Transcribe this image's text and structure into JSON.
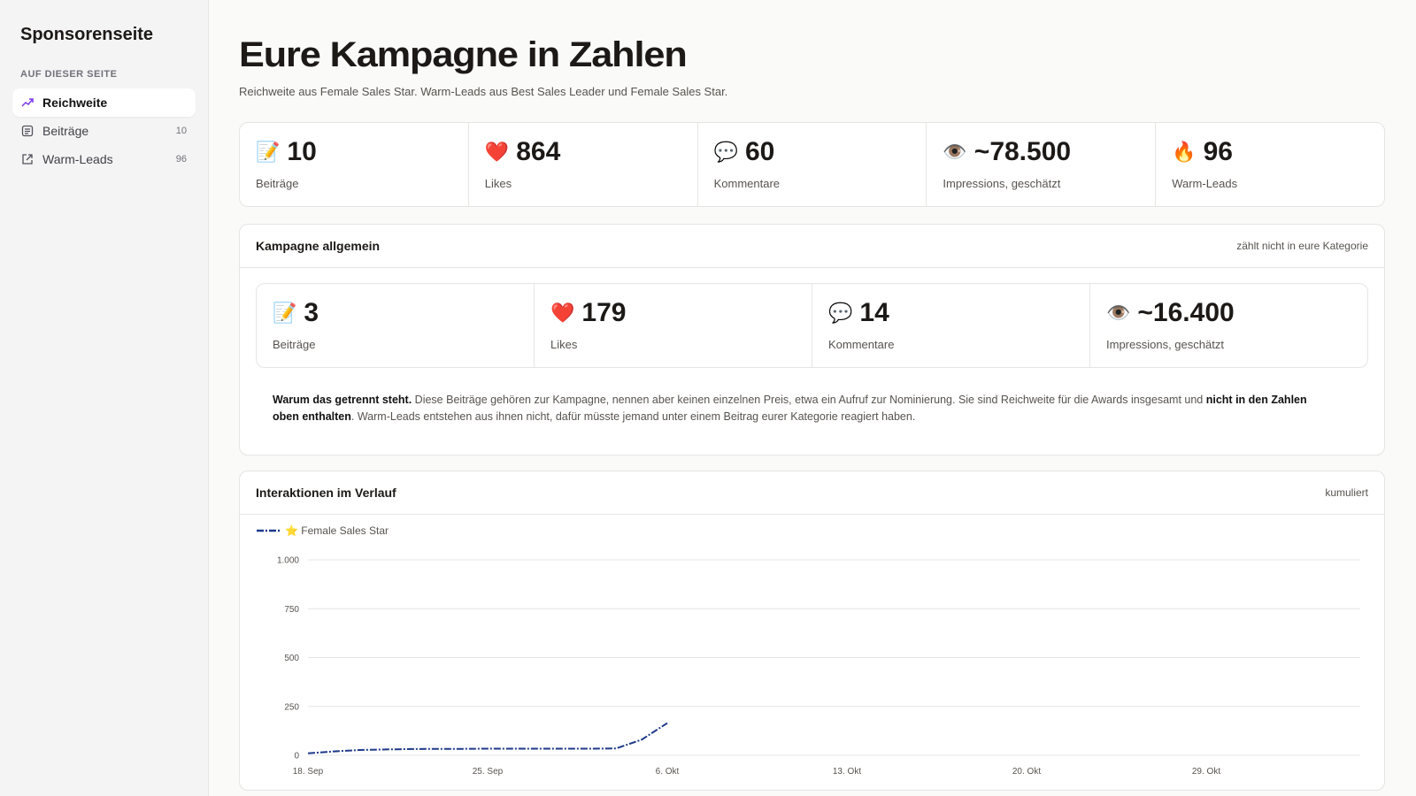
{
  "sidebar": {
    "title": "Sponsorenseite",
    "section": "AUF DIESER SEITE",
    "nav": [
      {
        "label": "Reichweite"
      },
      {
        "label": "Beiträge",
        "count": 10
      },
      {
        "label": "Warm-Leads",
        "count": 96
      }
    ]
  },
  "header": {
    "title": "Eure Kampagne in Zahlen",
    "subtitle": "Reichweite aus Female Sales Star. Warm-Leads aus Best Sales Leader und Female Sales Star."
  },
  "stats": [
    {
      "icon": "📝",
      "value": 10,
      "label": "Beiträge"
    },
    {
      "icon": "❤️",
      "value": 864,
      "label": "Likes"
    },
    {
      "icon": "💬",
      "value": 60,
      "label": "Kommentare"
    },
    {
      "icon": "👁️",
      "value": "~78.500",
      "label": "Impressions, geschätzt"
    },
    {
      "icon": "🔥",
      "value": 96,
      "label": "Warm-Leads"
    }
  ],
  "general": {
    "title": "Kampagne allgemein",
    "note": "zählt nicht in eure Kategorie",
    "stats": [
      {
        "icon": "📝",
        "value": 3,
        "label": "Beiträge"
      },
      {
        "icon": "❤️",
        "value": 179,
        "label": "Likes"
      },
      {
        "icon": "💬",
        "value": 14,
        "label": "Kommentare"
      },
      {
        "icon": "👁️",
        "value": "~16.400",
        "label": "Impressions, geschätzt"
      }
    ],
    "explanation": [
      "Warum das getrennt steht.",
      " Diese Beiträge gehören zur Kampagne, nennen aber keinen einzelnen Preis, etwa ein Aufruf zur Nominierung. Sie sind Reichweite für die Awards insgesamt und ",
      "nicht in den Zahlen oben enthalten",
      ". Warm-Leads entstehen aus ihnen nicht, dafür müsste jemand unter einem Beitrag eurer Kategorie reagiert haben."
    ]
  },
  "chart_panel": {
    "title": "Interaktionen im Verlauf",
    "note": "kumuliert"
  },
  "chart_data": {
    "type": "line",
    "categories": [
      "18. Sep",
      null,
      null,
      null,
      null,
      null,
      null,
      "25. Sep",
      null,
      null,
      null,
      null,
      null,
      null,
      "6. Okt",
      null,
      null,
      null,
      null,
      null,
      null,
      "13. Okt",
      null,
      null,
      null,
      null,
      null,
      null,
      "20. Okt",
      null,
      null,
      null,
      null,
      null,
      null,
      "29. Okt",
      null,
      null,
      null,
      null,
      null,
      null
    ],
    "series": [
      {
        "name": "⭐ Female Sales Star",
        "color": "#1e3a8a",
        "values": [
          10,
          20,
          27,
          30,
          32,
          33,
          33,
          34,
          34,
          34,
          34,
          34,
          35,
          80,
          165,
          null,
          null,
          null,
          null,
          null,
          null,
          null,
          null,
          null,
          null,
          null,
          null,
          null,
          null,
          null,
          null,
          null,
          null,
          null,
          null,
          null,
          null,
          null,
          null,
          null,
          null,
          null
        ]
      }
    ],
    "ylim": [
      0,
      1000
    ],
    "yticks": [
      0,
      250,
      500,
      750,
      {
        "value": 1000,
        "label": "1.000"
      }
    ],
    "grid": true,
    "legend": "top-left"
  }
}
